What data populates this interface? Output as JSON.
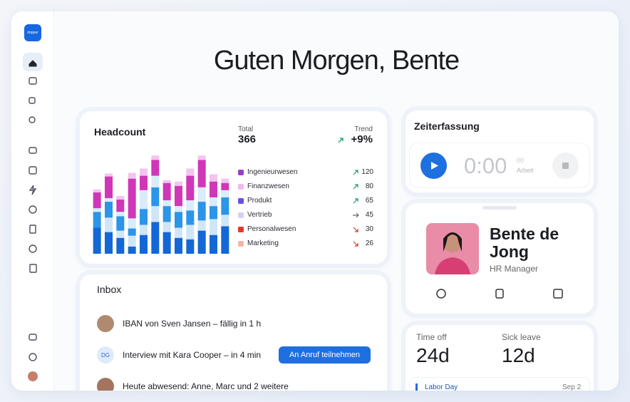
{
  "sidebar": {
    "logo": "dopper"
  },
  "greeting": "Guten Morgen, Bente",
  "headcount": {
    "title": "Headcount",
    "total_label": "Total",
    "total": 366,
    "trend_label": "Trend",
    "trend": "+9%",
    "legend": [
      {
        "name": "Ingenieurwesen",
        "color": "#9b3fc9",
        "value": 120,
        "direction": "up"
      },
      {
        "name": "Finanzwesen",
        "color": "#f0b8ee",
        "value": 80,
        "direction": "up"
      },
      {
        "name": "Produkt",
        "color": "#6b4fe0",
        "value": 65,
        "direction": "up"
      },
      {
        "name": "Vertrieb",
        "color": "#d3d0f5",
        "value": 45,
        "direction": "flat"
      },
      {
        "name": "Personalwesen",
        "color": "#e0392b",
        "value": 30,
        "direction": "down"
      },
      {
        "name": "Marketing",
        "color": "#f5b4a8",
        "value": 26,
        "direction": "down"
      }
    ],
    "chart": {
      "type": "bar",
      "colors": [
        "#1467d6",
        "#cfe6f7",
        "#2b95e8",
        "#d9ecfa",
        "#cf37b8",
        "#f3c4ee"
      ],
      "ylim": [
        0,
        150
      ],
      "bars": [
        [
          36,
          0,
          22,
          5,
          22,
          4
        ],
        [
          30,
          20,
          22,
          5,
          30,
          4
        ],
        [
          22,
          10,
          20,
          6,
          17,
          5
        ],
        [
          10,
          15,
          10,
          14,
          55,
          8
        ],
        [
          26,
          14,
          22,
          26,
          20,
          10
        ],
        [
          44,
          22,
          26,
          16,
          22,
          6
        ],
        [
          30,
          14,
          22,
          8,
          24,
          4
        ],
        [
          22,
          14,
          22,
          8,
          28,
          6
        ],
        [
          20,
          20,
          20,
          14,
          34,
          10
        ],
        [
          32,
          14,
          26,
          20,
          38,
          6
        ],
        [
          26,
          22,
          18,
          12,
          22,
          10
        ],
        [
          38,
          16,
          24,
          10,
          10,
          6
        ]
      ]
    }
  },
  "inbox": {
    "title": "Inbox",
    "items": [
      {
        "text": "IBAN von Sven Jansen – fällig in 1 h"
      },
      {
        "initials": "DG",
        "text": "Interview mit Kara Cooper – in 4 min",
        "action": "An Anruf teilnehmen"
      },
      {
        "text": "Heute abwesend: Anne, Marc und 2 weitere"
      }
    ]
  },
  "time_tracking": {
    "title": "Zeiterfassung",
    "clock": "0:00",
    "seconds": "00",
    "mode": "Arbeit"
  },
  "profile": {
    "name": "Bente de Jong",
    "role": "HR Manager"
  },
  "absence": {
    "time_off_label": "Time off",
    "time_off": "24d",
    "sick_label": "Sick leave",
    "sick": "12d",
    "holiday": "Labor Day",
    "holiday_date": "Sep 2"
  }
}
